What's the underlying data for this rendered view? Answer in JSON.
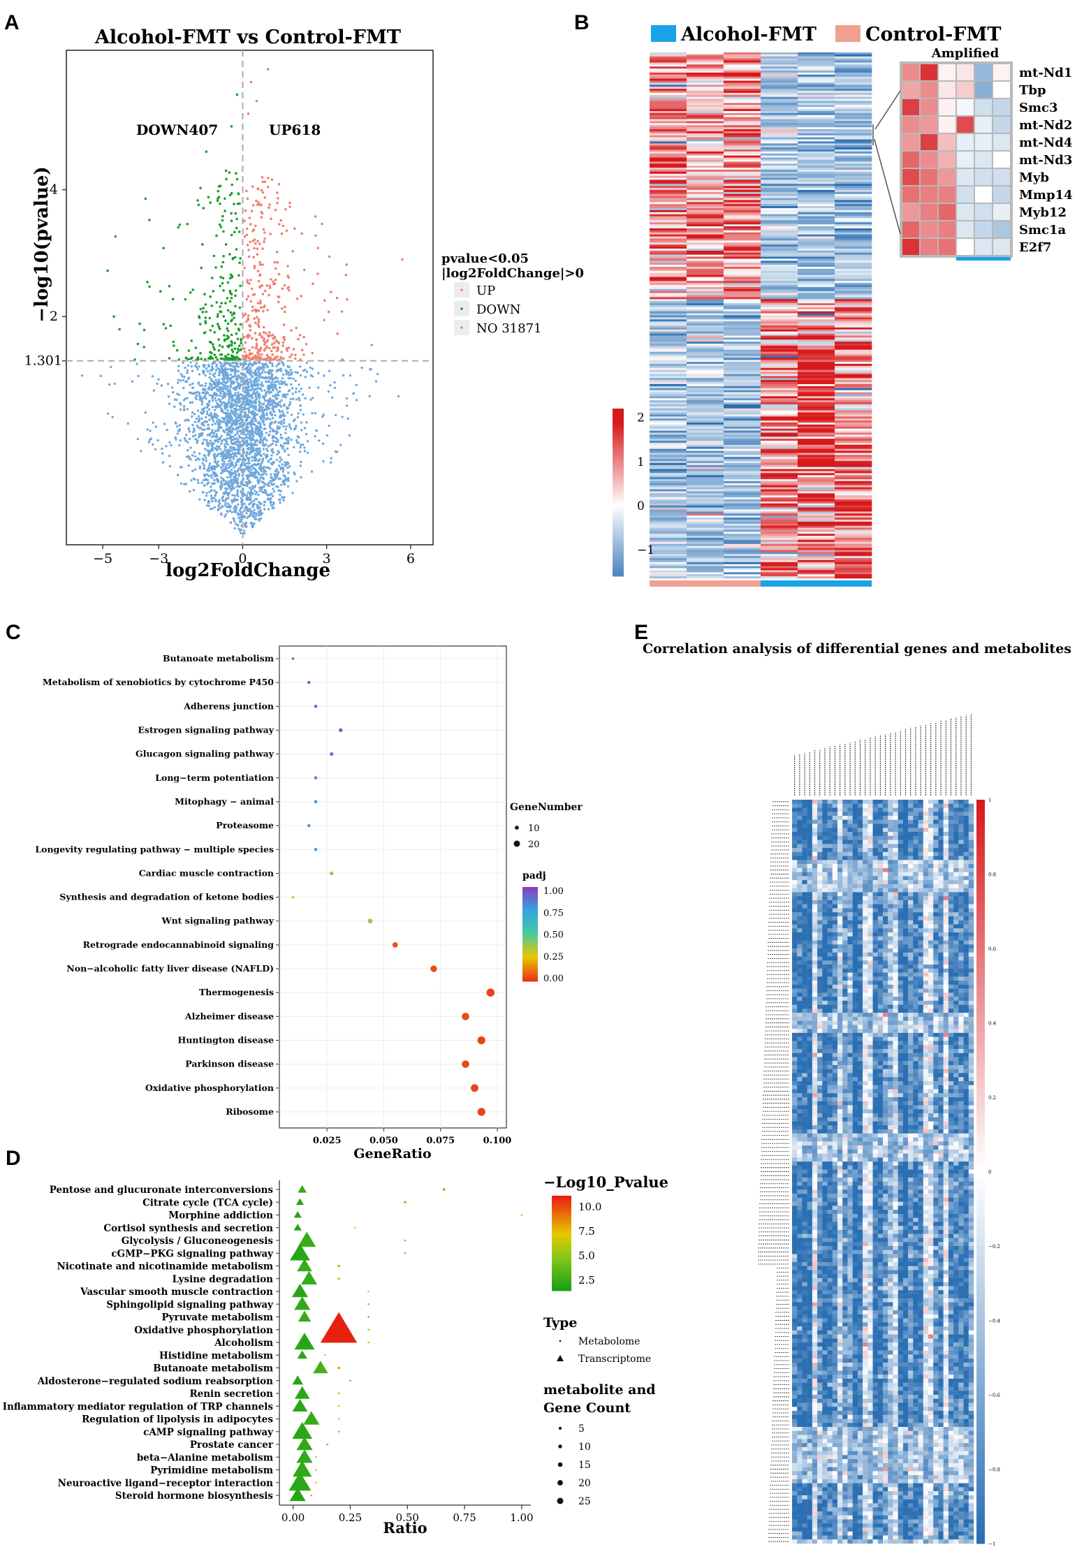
{
  "panel_letters": {
    "a": "A",
    "b": "B",
    "c": "C",
    "d": "D",
    "e": "E"
  },
  "colors": {
    "up": "#f08070",
    "down": "#1a9e2a",
    "ns": "#6fa8dc",
    "heat_high": "#d7191c",
    "heat_low": "#2b83ba",
    "alcohol": "#1aa3e8",
    "control": "#f0a090"
  },
  "chart_data": [
    {
      "id": "A",
      "type": "scatter",
      "title": "Alcohol-FMT vs Control-FMT",
      "xlabel": "log2FoldChange",
      "ylabel": "−log10(pvalue)",
      "x_ticks": [
        "−5",
        "−3",
        "0",
        "3",
        "6"
      ],
      "x_tick_values": [
        -5,
        -3,
        0,
        3,
        6
      ],
      "y_ticks": [
        "2",
        "4"
      ],
      "y_tick_values": [
        2,
        4
      ],
      "threshold_label": "1.301",
      "threshold": 1.301,
      "xlim": [
        -6.3,
        6.8
      ],
      "ylim": [
        -1.6,
        6.2
      ],
      "annotations": {
        "down": "DOWN407",
        "up": "UP618"
      },
      "legend": {
        "title_line1": "pvalue<0.05",
        "title_line2": "|log2FoldChange|>0",
        "items": [
          "UP",
          "DOWN",
          "NO 31871"
        ]
      },
      "counts": {
        "up": 618,
        "down": 407,
        "ns": 31871
      }
    },
    {
      "id": "B",
      "type": "heatmap",
      "groups": [
        "Alcohol-FMT",
        "Control-FMT"
      ],
      "colorbar_ticks": [
        "2",
        "1",
        "0",
        "−1"
      ],
      "colorbar_tick_values": [
        2,
        1,
        0,
        -1
      ],
      "inset_title": "Amplified",
      "inset_genes": [
        "mt-Nd1",
        "Tbp",
        "Smc3",
        "mt-Nd2",
        "mt-Nd4",
        "mt-Nd3",
        "Myb",
        "Mmp14",
        "Myb12",
        "Smc1a",
        "E2f7"
      ],
      "inset_values": [
        [
          0.9,
          1.6,
          0.1,
          0.2,
          -0.9,
          0.1
        ],
        [
          0.7,
          0.9,
          0.2,
          0.4,
          -1.0,
          0.0
        ],
        [
          1.5,
          0.9,
          0.1,
          -0.1,
          -0.4,
          -0.5
        ],
        [
          0.9,
          0.8,
          0.1,
          1.4,
          -0.2,
          -0.5
        ],
        [
          0.8,
          1.5,
          0.5,
          -0.2,
          -0.2,
          -0.3
        ],
        [
          1.2,
          0.9,
          0.6,
          -0.2,
          -0.3,
          0.0
        ],
        [
          1.4,
          1.1,
          0.8,
          -0.3,
          -0.4,
          -0.4
        ],
        [
          1.1,
          1.0,
          1.0,
          -0.4,
          0.0,
          -0.5
        ],
        [
          0.8,
          1.0,
          1.2,
          -0.3,
          -0.4,
          -0.2
        ],
        [
          1.2,
          0.9,
          1.0,
          -0.3,
          -0.5,
          -0.7
        ],
        [
          1.6,
          1.0,
          1.1,
          0.0,
          -0.3,
          -0.3
        ]
      ]
    },
    {
      "id": "C",
      "type": "scatter",
      "xlabel": "GeneRatio",
      "x_ticks": [
        "0.025",
        "0.050",
        "0.075",
        "0.100"
      ],
      "x_tick_values": [
        0.025,
        0.05,
        0.075,
        0.1
      ],
      "xlim": [
        0.004,
        0.104
      ],
      "size_legend_title": "GeneNumber",
      "size_legend": [
        10,
        20
      ],
      "color_legend_title": "padj",
      "color_legend_ticks": [
        "1.00",
        "0.75",
        "0.50",
        "0.25",
        "0.00"
      ],
      "pathways": [
        "Butanoate metabolism",
        "Metabolism of xenobiotics by cytochrome P450",
        "Adherens junction",
        "Estrogen signaling pathway",
        "Glucagon signaling pathway",
        "Long−term potentiation",
        "Mitophagy − animal",
        "Proteasome",
        "Longevity regulating pathway − multiple species",
        "Cardiac muscle contraction",
        "Synthesis and degradation of ketone bodies",
        "Wnt signaling pathway",
        "Retrograde endocannabinoid signaling",
        "Non−alcoholic fatty liver disease (NAFLD)",
        "Thermogenesis",
        "Alzheimer disease",
        "Huntington disease",
        "Parkinson disease",
        "Oxidative phosphorylation",
        "Ribosome"
      ],
      "gene_ratio": [
        0.01,
        0.017,
        0.02,
        0.031,
        0.027,
        0.02,
        0.02,
        0.017,
        0.02,
        0.027,
        0.01,
        0.044,
        0.055,
        0.072,
        0.097,
        0.086,
        0.093,
        0.086,
        0.09,
        0.093
      ],
      "gene_number": [
        3,
        5,
        6,
        9,
        8,
        6,
        6,
        5,
        6,
        8,
        3,
        13,
        16,
        21,
        28,
        25,
        27,
        25,
        26,
        27
      ],
      "padj": [
        0.95,
        0.98,
        0.92,
        0.9,
        0.88,
        0.85,
        0.8,
        0.8,
        0.78,
        0.4,
        0.3,
        0.38,
        0.05,
        0.04,
        0.02,
        0.03,
        0.02,
        0.03,
        0.02,
        0.02
      ]
    },
    {
      "id": "D",
      "type": "scatter",
      "xlabel": "Ratio",
      "x_ticks": [
        "0.00",
        "0.25",
        "0.50",
        "0.75",
        "1.00"
      ],
      "x_tick_values": [
        0,
        0.25,
        0.5,
        0.75,
        1.0
      ],
      "xlim": [
        -0.06,
        1.04
      ],
      "color_legend_title": "−Log10_Pvalue",
      "color_legend_ticks": [
        "10.0",
        "7.5",
        "5.0",
        "2.5"
      ],
      "type_legend_title": "Type",
      "type_legend_items": [
        "Metabolome",
        "Transcriptome"
      ],
      "count_legend_title_line1": "metabolite and",
      "count_legend_title_line2": "Gene Count",
      "count_legend": [
        5,
        10,
        15,
        20,
        25
      ],
      "pathways": [
        "Pentose and glucuronate interconversions",
        "Citrate cycle (TCA cycle)",
        "Morphine addiction",
        "Cortisol synthesis and secretion",
        "Glycolysis / Gluconeogenesis",
        "cGMP−PKG signaling pathway",
        "Nicotinate and nicotinamide metabolism",
        "Lysine degradation",
        "Vascular smooth muscle contraction",
        "Sphingolipid signaling pathway",
        "Pyruvate metabolism",
        "Oxidative phosphorylation",
        "Alcoholism",
        "Histidine metabolism",
        "Butanoate metabolism",
        "Aldosterone−regulated sodium reabsorption",
        "Renin secretion",
        "Inflammatory mediator regulation of TRP channels",
        "Regulation of lipolysis in adipocytes",
        "cAMP signaling pathway",
        "Prostate cancer",
        "beta−Alanine metabolism",
        "Pyrimidine metabolism",
        "Neuroactive ligand−receptor interaction",
        "Steroid hormone biosynthesis"
      ],
      "metabolome_ratio": [
        0.66,
        0.49,
        1.0,
        0.27,
        0.49,
        0.49,
        0.2,
        0.2,
        0.33,
        0.33,
        0.33,
        0.33,
        0.33,
        0.14,
        0.2,
        0.25,
        0.2,
        0.2,
        0.2,
        0.2,
        0.15,
        0.1,
        0.1,
        0.1,
        0.08
      ],
      "metabolome_count": [
        2,
        2,
        1,
        1,
        1,
        1,
        2,
        2,
        1,
        1,
        1,
        1,
        1,
        1,
        2,
        1,
        1,
        1,
        1,
        1,
        1,
        1,
        1,
        1,
        1
      ],
      "transcriptome_ratio": [
        0.04,
        0.03,
        0.02,
        0.02,
        0.06,
        0.03,
        0.05,
        0.07,
        0.03,
        0.04,
        0.05,
        0.2,
        0.05,
        0.04,
        0.12,
        0.02,
        0.04,
        0.03,
        0.08,
        0.04,
        0.05,
        0.05,
        0.04,
        0.03,
        0.02
      ],
      "transcriptome_count": [
        3,
        2,
        2,
        2,
        12,
        14,
        9,
        10,
        10,
        10,
        7,
        30,
        14,
        4,
        9,
        5,
        9,
        9,
        10,
        14,
        10,
        10,
        13,
        16,
        10
      ],
      "transcriptome_logp": [
        2.0,
        1.5,
        1.5,
        1.5,
        2.0,
        1.5,
        2.0,
        2.0,
        1.5,
        1.8,
        2.0,
        11.0,
        1.5,
        1.5,
        2.5,
        1.5,
        1.6,
        1.6,
        2.0,
        1.6,
        1.8,
        1.8,
        1.8,
        1.6,
        1.5
      ]
    },
    {
      "id": "E",
      "type": "heatmap",
      "title": "Correlation analysis of differential genes and metabolites",
      "colorbar_ticks": [
        "1",
        "0.8",
        "0.6",
        "0.4",
        "0.2",
        "0",
        "−0.2",
        "−0.4",
        "−0.6",
        "−0.8",
        "−1"
      ],
      "colorbar_tick_values": [
        1,
        0.8,
        0.6,
        0.4,
        0.2,
        0,
        -0.2,
        -0.4,
        -0.6,
        -0.8,
        -1
      ]
    }
  ]
}
